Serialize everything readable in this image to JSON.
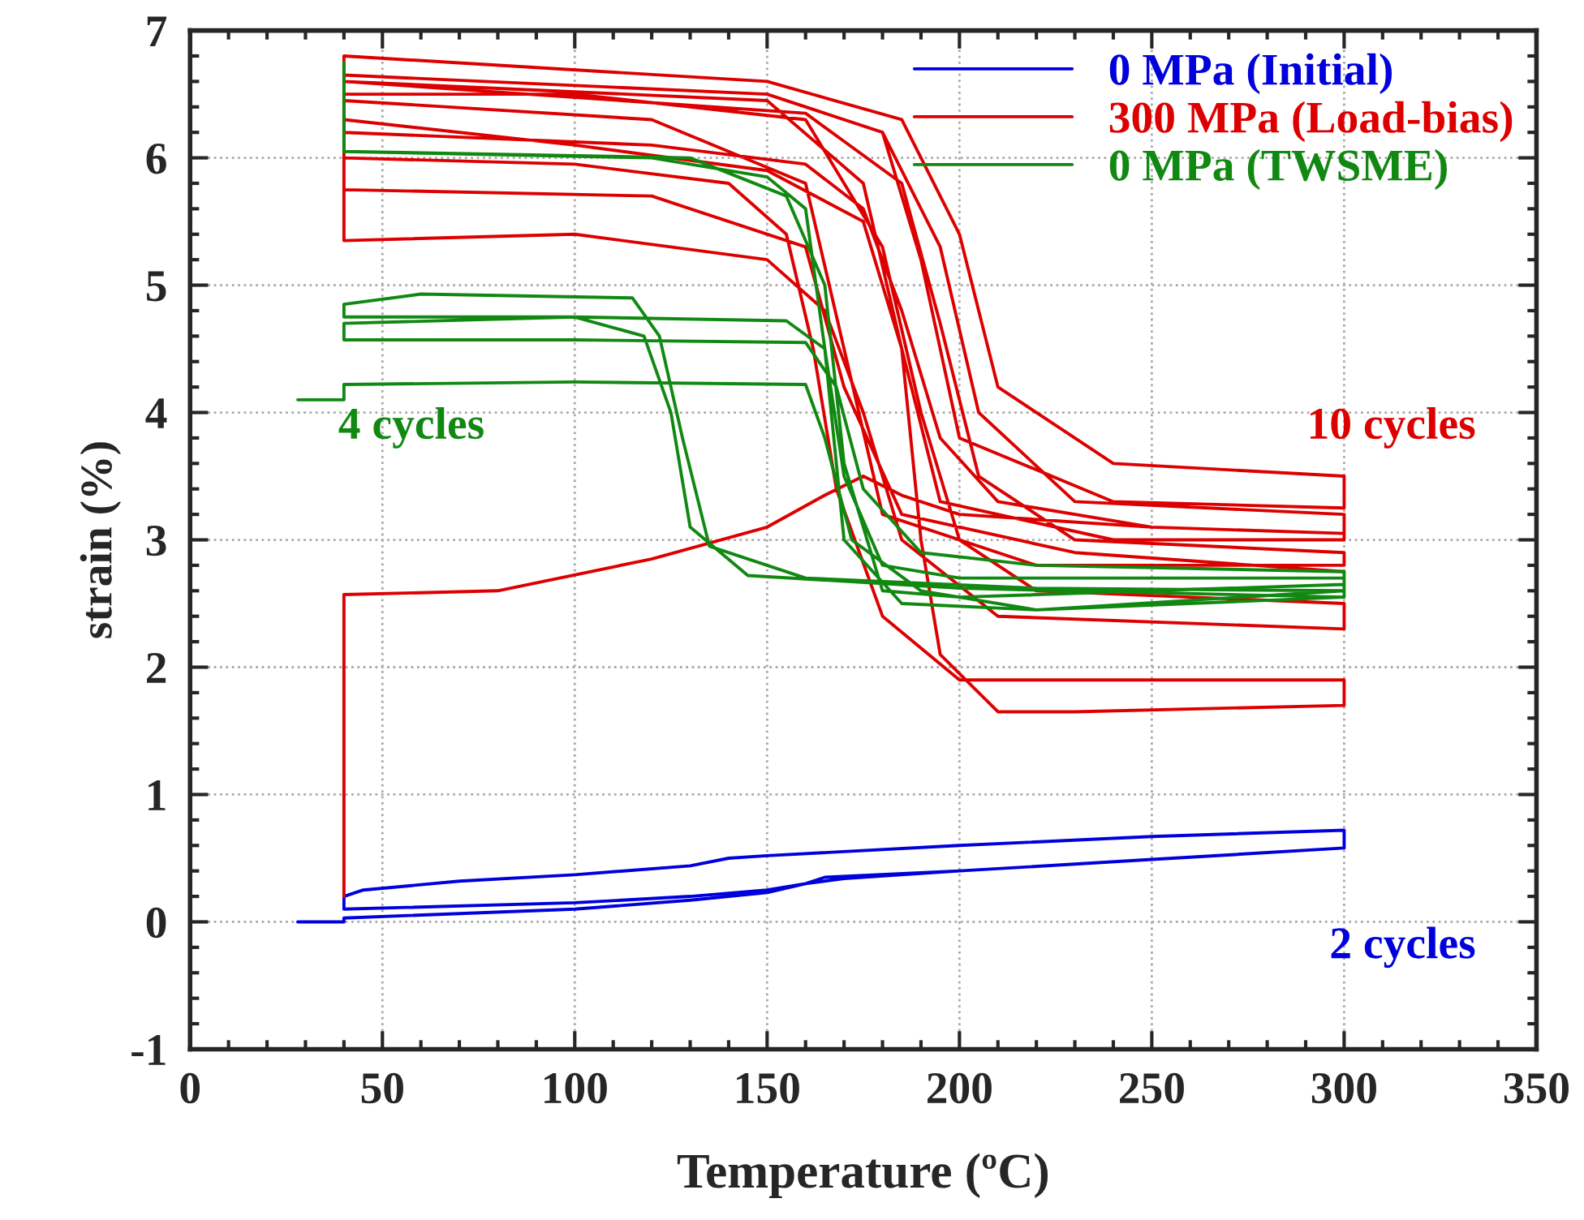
{
  "chart_data": {
    "type": "line",
    "xlabel": "Temperature (ºC)",
    "ylabel": "strain (%)",
    "xlim": [
      0,
      350
    ],
    "ylim": [
      -1,
      7
    ],
    "xticks": [
      0,
      50,
      100,
      150,
      200,
      250,
      300,
      350
    ],
    "yticks": [
      -1,
      0,
      1,
      2,
      3,
      4,
      5,
      6,
      7
    ],
    "grid": true,
    "legend": "top right",
    "marker": "none",
    "line_style": "solid",
    "annotations": [
      "4 cycles",
      "10 cycles",
      "2 cycles"
    ],
    "series": [
      {
        "name": "0 MPa (Initial)",
        "color": "#0000dd",
        "x": [
          28,
          40,
          40,
          100,
          130,
          150,
          160,
          165,
          200,
          250,
          300,
          300,
          250,
          200,
          150,
          140,
          130,
          100,
          70,
          45,
          40,
          40,
          100,
          130,
          150,
          160,
          170,
          200,
          250,
          300
        ],
        "values": [
          0,
          0,
          0.03,
          0.1,
          0.17,
          0.23,
          0.3,
          0.35,
          0.4,
          0.49,
          0.58,
          0.72,
          0.67,
          0.6,
          0.52,
          0.5,
          0.44,
          0.37,
          0.32,
          0.25,
          0.2,
          0.1,
          0.15,
          0.2,
          0.25,
          0.3,
          0.34,
          0.4,
          0.49,
          0.58
        ]
      },
      {
        "name": "300 MPa (Load-bias)",
        "color": "#dd0000",
        "x": [
          40,
          40,
          80,
          120,
          150,
          165,
          175,
          185,
          200,
          250,
          300,
          300,
          250,
          210,
          195,
          185,
          175,
          160,
          120,
          40,
          40,
          100,
          140,
          155,
          162,
          168,
          180,
          200,
          300,
          300,
          230,
          210,
          195,
          190,
          185,
          175,
          150,
          100,
          40,
          40,
          100,
          150,
          165,
          175,
          185,
          210,
          300,
          300,
          220,
          200,
          190,
          180,
          160,
          100,
          40,
          40,
          120,
          160,
          170,
          180,
          220,
          300,
          300,
          230,
          205,
          195,
          185,
          160,
          40,
          40,
          150,
          175,
          185,
          195,
          240,
          300,
          300,
          230,
          205,
          195,
          180,
          150,
          40,
          40,
          150,
          180,
          190,
          200,
          240,
          300,
          300,
          240,
          210,
          200,
          185,
          150,
          40,
          40,
          120,
          160,
          170,
          185,
          230,
          300
        ],
        "values": [
          0.2,
          2.57,
          2.6,
          2.85,
          3.1,
          3.35,
          3.5,
          3.35,
          3.2,
          3.1,
          3.05,
          3.05,
          3.1,
          3.3,
          3.8,
          4.8,
          5.6,
          5.95,
          6.1,
          6.2,
          6.0,
          5.95,
          5.8,
          5.4,
          4.5,
          3.4,
          2.4,
          1.9,
          1.9,
          1.7,
          1.65,
          1.65,
          2.1,
          3.0,
          4.5,
          5.5,
          5.9,
          6.1,
          6.3,
          5.35,
          5.4,
          5.2,
          4.8,
          4.0,
          3.0,
          2.4,
          2.3,
          2.5,
          2.6,
          3.0,
          4.0,
          5.3,
          6.3,
          6.5,
          6.5,
          6.45,
          6.3,
          5.8,
          4.5,
          3.2,
          2.8,
          2.8,
          2.9,
          3.0,
          3.5,
          4.7,
          5.8,
          6.35,
          6.6,
          6.6,
          6.45,
          5.8,
          4.5,
          3.3,
          3.0,
          3.0,
          3.2,
          3.3,
          4.0,
          5.3,
          6.2,
          6.5,
          6.65,
          6.65,
          6.5,
          6.2,
          5.2,
          3.8,
          3.3,
          3.25,
          3.5,
          3.6,
          4.2,
          5.4,
          6.3,
          6.6,
          6.8,
          5.75,
          5.7,
          5.3,
          4.2,
          3.2,
          2.9,
          2.75
        ]
      },
      {
        "name": "0 MPa (TWSME)",
        "color": "#118811",
        "x": [
          28,
          40,
          40,
          100,
          160,
          165,
          172,
          190,
          220,
          300,
          300,
          220,
          190,
          175,
          168,
          160,
          100,
          40,
          40,
          100,
          118,
          125,
          130,
          145,
          200,
          300,
          300,
          200,
          180,
          170,
          165,
          155,
          100,
          40,
          40,
          60,
          115,
          122,
          128,
          135,
          160,
          220,
          300,
          300,
          200,
          180,
          170,
          165,
          155,
          130,
          40,
          40,
          40,
          120,
          150,
          160,
          165,
          170,
          185,
          220,
          300
        ],
        "values": [
          4.1,
          4.1,
          4.22,
          4.24,
          4.22,
          3.8,
          3.0,
          2.6,
          2.45,
          2.6,
          2.75,
          2.8,
          2.9,
          3.4,
          4.2,
          4.55,
          4.57,
          4.57,
          4.7,
          4.75,
          4.6,
          4.0,
          3.1,
          2.72,
          2.62,
          2.55,
          2.7,
          2.7,
          2.8,
          3.5,
          4.5,
          4.72,
          4.75,
          4.75,
          4.85,
          4.93,
          4.9,
          4.6,
          3.8,
          2.95,
          2.7,
          2.62,
          2.6,
          2.65,
          2.55,
          2.6,
          3.6,
          5.0,
          5.7,
          6.0,
          6.05,
          6.75,
          6.05,
          6.0,
          5.85,
          5.6,
          4.5,
          3.0,
          2.5,
          2.45,
          2.55
        ]
      }
    ]
  }
}
